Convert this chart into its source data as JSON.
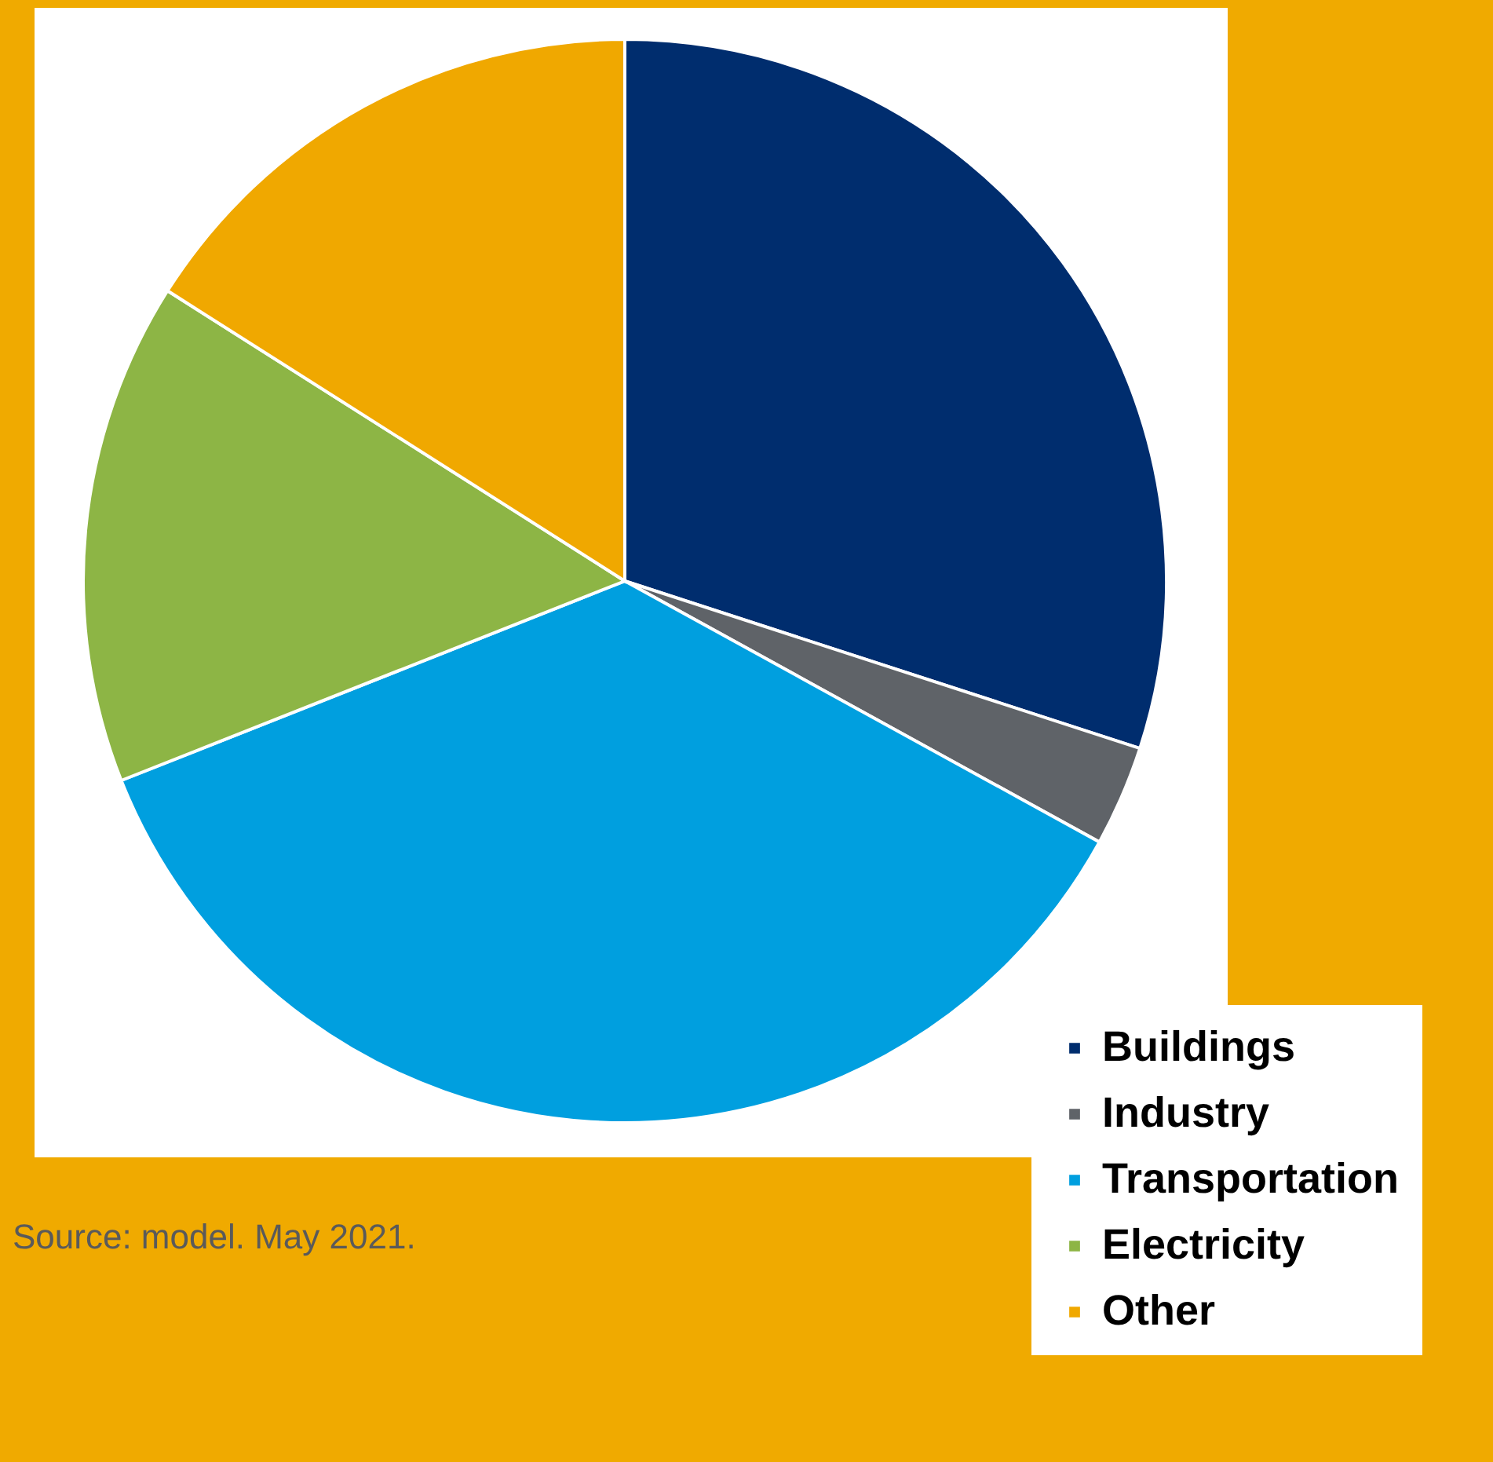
{
  "chart_data": {
    "type": "pie",
    "categories": [
      "Buildings",
      "Industry",
      "Transportation",
      "Electricity",
      "Other"
    ],
    "values": [
      30,
      3,
      36,
      15,
      16
    ],
    "colors": [
      "#002d6e",
      "#5f6368",
      "#009fdf",
      "#8db545",
      "#f0a800"
    ],
    "legend": "bottom right",
    "annotations": [
      "Source: model. May 2021."
    ]
  }
}
